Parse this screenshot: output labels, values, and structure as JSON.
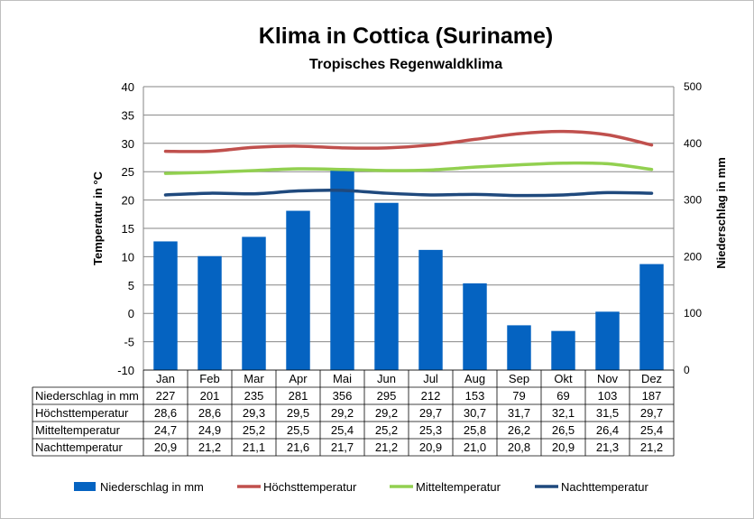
{
  "chart_data": {
    "type": "bar",
    "title": "Klima in Cottica (Suriname)",
    "subtitle": "Tropisches Regenwaldklima",
    "categories": [
      "Jan",
      "Feb",
      "Mar",
      "Apr",
      "Mai",
      "Jun",
      "Jul",
      "Aug",
      "Sep",
      "Okt",
      "Nov",
      "Dez"
    ],
    "ylabel_left": "Temperatur in °C",
    "ylabel_right": "Niederschlag in mm",
    "ylim_left": [
      -10,
      40
    ],
    "yticks_left": [
      40,
      35,
      30,
      25,
      20,
      15,
      10,
      5,
      0,
      -5,
      -10
    ],
    "ylim_right": [
      0,
      500
    ],
    "yticks_right": [
      500,
      400,
      300,
      200,
      100,
      0
    ],
    "grid": true,
    "legend_position": "bottom",
    "series": [
      {
        "name": "Niederschlag in mm",
        "type": "bar",
        "axis": "right",
        "color": "#0563C1",
        "values": [
          227,
          201,
          235,
          281,
          356,
          295,
          212,
          153,
          79,
          69,
          103,
          187
        ],
        "labels": [
          "227",
          "201",
          "235",
          "281",
          "356",
          "295",
          "212",
          "153",
          "79",
          "69",
          "103",
          "187"
        ]
      },
      {
        "name": "Höchsttemperatur",
        "type": "line",
        "axis": "left",
        "color": "#C0504D",
        "values": [
          28.6,
          28.6,
          29.3,
          29.5,
          29.2,
          29.2,
          29.7,
          30.7,
          31.7,
          32.1,
          31.5,
          29.7
        ],
        "labels": [
          "28,6",
          "28,6",
          "29,3",
          "29,5",
          "29,2",
          "29,2",
          "29,7",
          "30,7",
          "31,7",
          "32,1",
          "31,5",
          "29,7"
        ]
      },
      {
        "name": "Mitteltemperatur",
        "type": "line",
        "axis": "left",
        "color": "#92D050",
        "values": [
          24.7,
          24.9,
          25.2,
          25.5,
          25.4,
          25.2,
          25.3,
          25.8,
          26.2,
          26.5,
          26.4,
          25.4
        ],
        "labels": [
          "24,7",
          "24,9",
          "25,2",
          "25,5",
          "25,4",
          "25,2",
          "25,3",
          "25,8",
          "26,2",
          "26,5",
          "26,4",
          "25,4"
        ]
      },
      {
        "name": "Nachttemperatur",
        "type": "line",
        "axis": "left",
        "color": "#1F497D",
        "values": [
          20.9,
          21.2,
          21.1,
          21.6,
          21.7,
          21.2,
          20.9,
          21.0,
          20.8,
          20.9,
          21.3,
          21.2
        ],
        "labels": [
          "20,9",
          "21,2",
          "21,1",
          "21,6",
          "21,7",
          "21,2",
          "20,9",
          "21,0",
          "20,8",
          "20,9",
          "21,3",
          "21,2"
        ]
      }
    ]
  }
}
